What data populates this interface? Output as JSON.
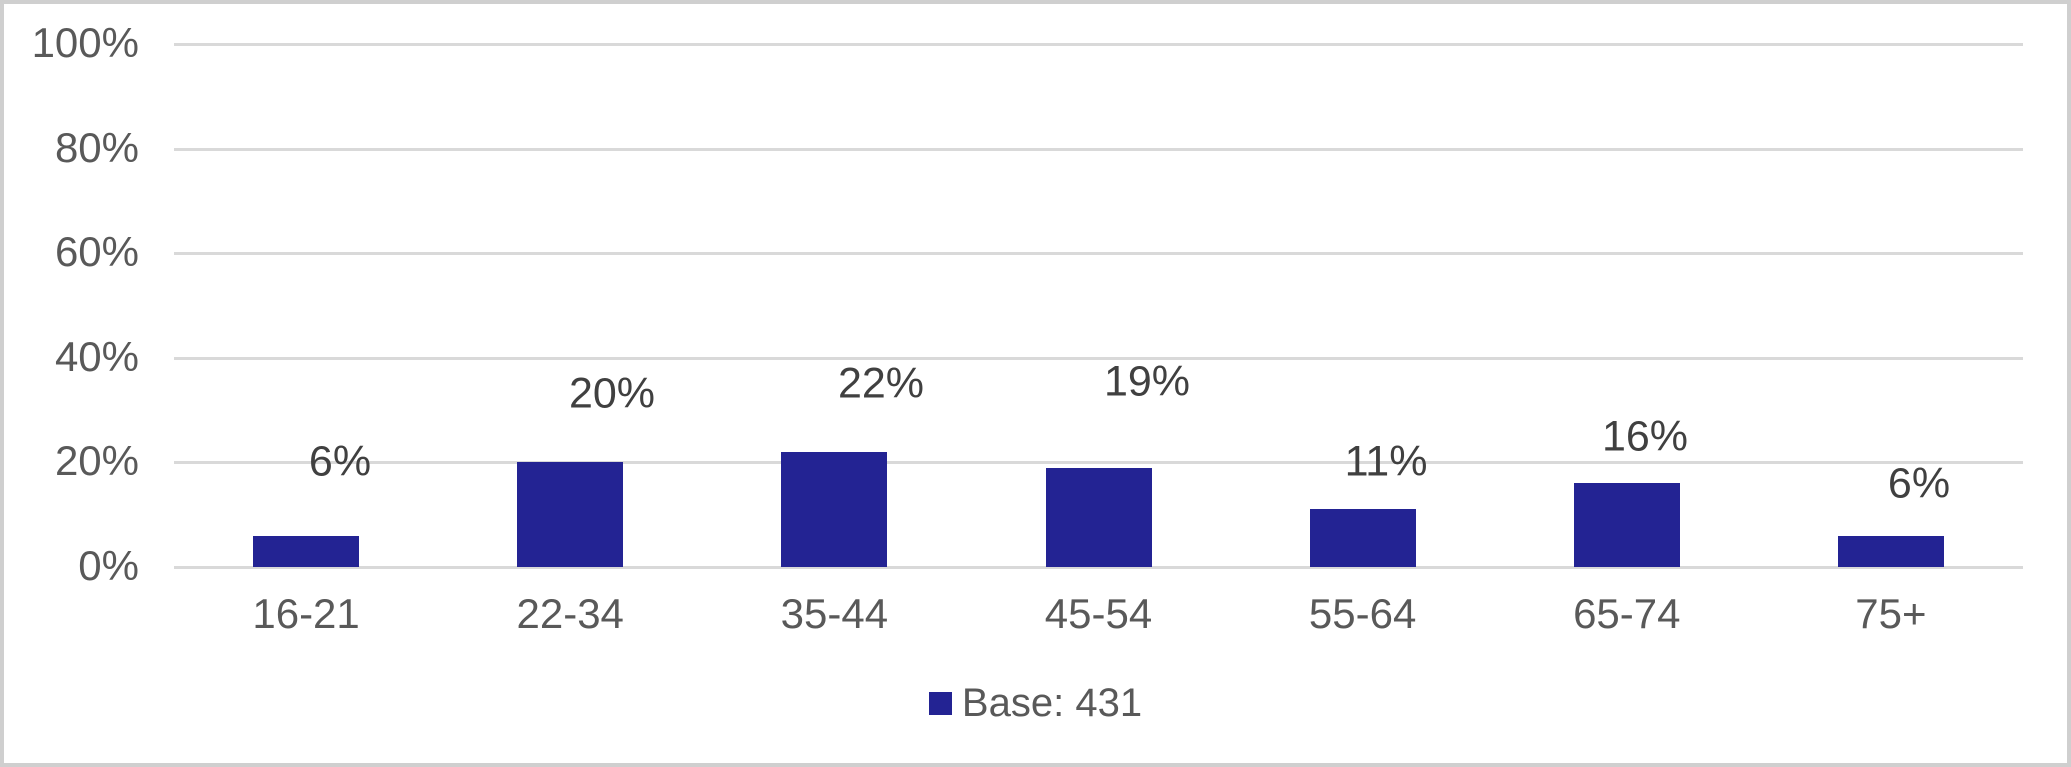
{
  "chart_data": {
    "type": "bar",
    "title": "",
    "xlabel": "",
    "ylabel": "",
    "categories": [
      "16-21",
      "22-34",
      "35-44",
      "45-54",
      "55-64",
      "65-74",
      "75+"
    ],
    "values": [
      6,
      20,
      22,
      19,
      11,
      16,
      6
    ],
    "data_labels": [
      "6%",
      "20%",
      "22%",
      "19%",
      "11%",
      "16%",
      "6%"
    ],
    "y_ticks": [
      "100%",
      "80%",
      "60%",
      "40%",
      "20%",
      "0%"
    ],
    "ylim": [
      0,
      100
    ],
    "grid": "horizontal",
    "legend_position": "bottom-center",
    "series_name": "Base: 431"
  },
  "legend": {
    "label": "Base: 431"
  },
  "colors": {
    "bar": "#232393",
    "gridline": "#d9d9d9",
    "axis_text": "#595959",
    "data_label_text": "#404040",
    "border": "#cfcfcf",
    "background": "#ffffff"
  }
}
